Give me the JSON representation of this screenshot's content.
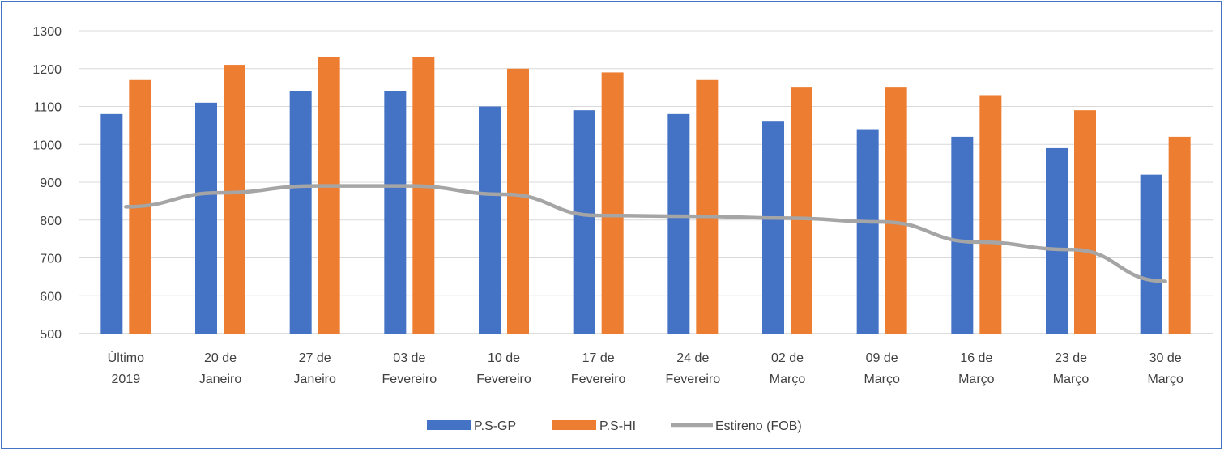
{
  "chart_data": {
    "type": "bar",
    "title": "",
    "xlabel": "",
    "ylabel": "",
    "ylim": [
      500,
      1300
    ],
    "yticks": [
      500,
      600,
      700,
      800,
      900,
      1000,
      1100,
      1200,
      1300
    ],
    "grid": true,
    "legend": "bottom",
    "categories": [
      [
        "Último",
        "2019"
      ],
      [
        "20 de",
        "Janeiro"
      ],
      [
        "27 de",
        "Janeiro"
      ],
      [
        "03 de",
        "Fevereiro"
      ],
      [
        "10 de",
        "Fevereiro"
      ],
      [
        "17 de",
        "Fevereiro"
      ],
      [
        "24 de",
        "Fevereiro"
      ],
      [
        "02 de",
        "Março"
      ],
      [
        "09 de",
        "Março"
      ],
      [
        "16 de",
        "Março"
      ],
      [
        "23 de",
        "Março"
      ],
      [
        "30 de",
        "Março"
      ]
    ],
    "series": [
      {
        "name": "P.S-GP",
        "type": "bar",
        "color": "#4472C4",
        "values": [
          1080,
          1110,
          1140,
          1140,
          1100,
          1090,
          1080,
          1060,
          1040,
          1020,
          990,
          920
        ]
      },
      {
        "name": "P.S-HI",
        "type": "bar",
        "color": "#ED7D31",
        "values": [
          1170,
          1210,
          1230,
          1230,
          1200,
          1190,
          1170,
          1150,
          1150,
          1130,
          1090,
          1020
        ]
      },
      {
        "name": "Estireno (FOB)",
        "type": "line",
        "color": "#A5A5A5",
        "values": [
          835,
          872,
          890,
          890,
          868,
          812,
          810,
          805,
          795,
          742,
          722,
          638
        ]
      }
    ]
  }
}
